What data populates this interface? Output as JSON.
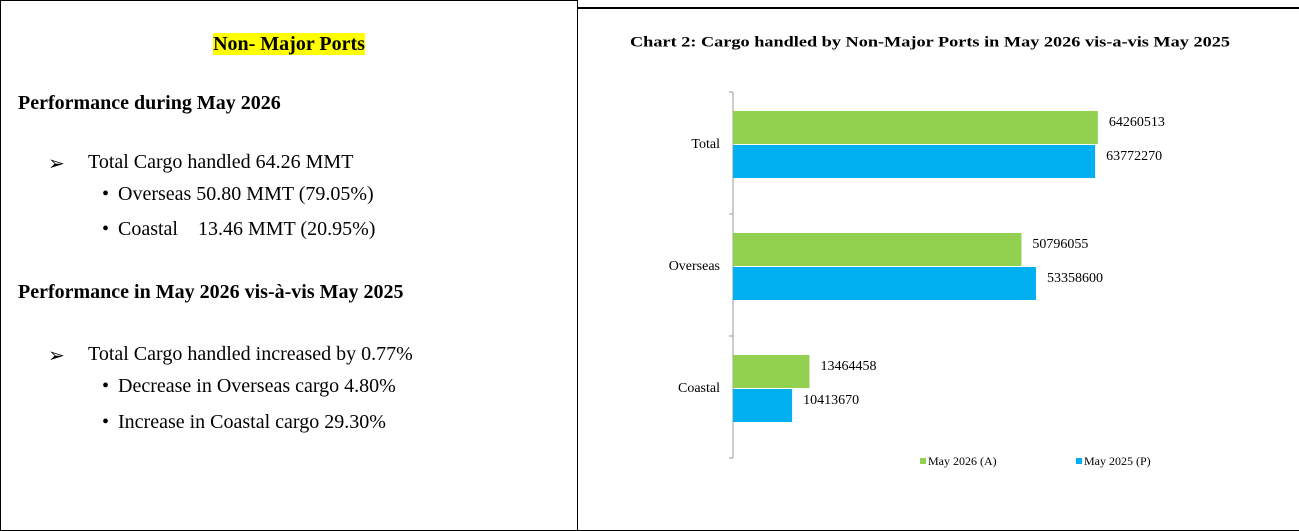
{
  "left": {
    "title": "Non- Major Ports",
    "heading1": "Performance during May 2026",
    "bullet1": "Total Cargo handled 64.26 MMT",
    "sub1": [
      "Overseas 50.80 MMT (79.05%)",
      "Coastal    13.46 MMT (20.95%)"
    ],
    "heading2": "Performance in May 2026 vis-à-vis May 2025",
    "bullet2": "Total Cargo handled increased by 0.77%",
    "sub2": [
      "Decrease in Overseas cargo 4.80%",
      "Increase in Coastal cargo 29.30%"
    ]
  },
  "chart_data": {
    "type": "hbar",
    "title": "Chart 2: Cargo handled by Non-Major Ports in May 2026 vis-a-vis  May 2025",
    "categories": [
      "Total",
      "Overseas",
      "Coastal"
    ],
    "series": [
      {
        "name": "May 2026 (A)",
        "color": "#92d050",
        "values": [
          64260513,
          50796055,
          13464458
        ]
      },
      {
        "name": "May 2025 (P)",
        "color": "#00b0f0",
        "values": [
          63772270,
          53358600,
          10413670
        ]
      }
    ],
    "xlim": [
      0,
      90000000
    ]
  }
}
